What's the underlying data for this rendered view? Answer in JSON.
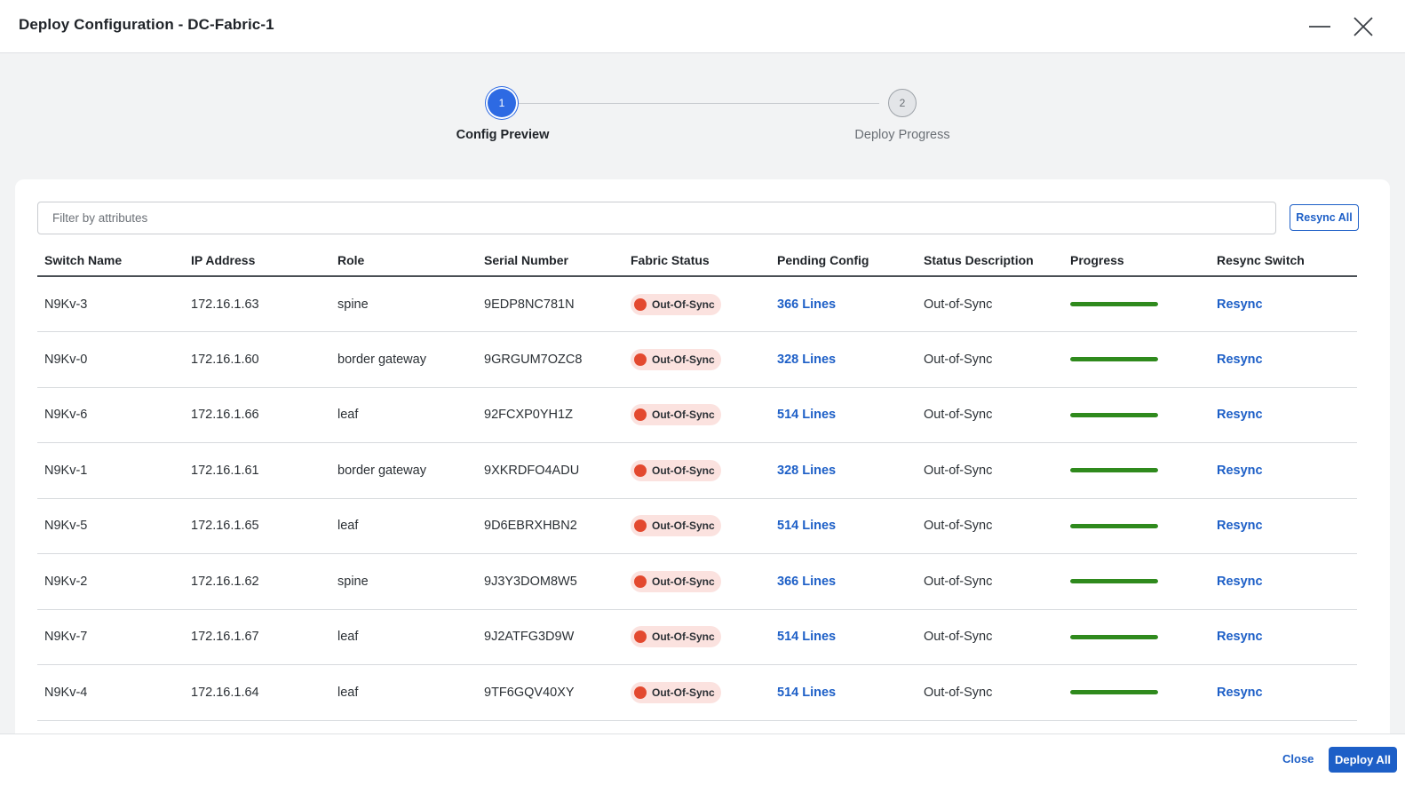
{
  "window": {
    "title": "Deploy Configuration - DC-Fabric-1",
    "minimize_icon": "minimize-icon",
    "close_icon": "close-icon"
  },
  "stepper": {
    "steps": [
      {
        "number": "1",
        "label": "Config Preview",
        "state": "active"
      },
      {
        "number": "2",
        "label": "Deploy Progress",
        "state": "inactive"
      }
    ]
  },
  "filter": {
    "placeholder": "Filter by attributes",
    "value": ""
  },
  "toolbar": {
    "resync_all_label": "Resync All"
  },
  "table": {
    "headers": [
      "Switch Name",
      "IP Address",
      "Role",
      "Serial Number",
      "Fabric Status",
      "Pending Config",
      "Status Description",
      "Progress",
      "Resync Switch"
    ],
    "rows": [
      {
        "switch_name": "N9Kv-3",
        "ip": "172.16.1.63",
        "role": "spine",
        "serial": "9EDP8NC781N",
        "fabric_status": "Out-Of-Sync",
        "pending_config": "366 Lines",
        "status_description": "Out-of-Sync",
        "progress": 1.0,
        "action": "Resync"
      },
      {
        "switch_name": "N9Kv-0",
        "ip": "172.16.1.60",
        "role": "border gateway",
        "serial": "9GRGUM7OZC8",
        "fabric_status": "Out-Of-Sync",
        "pending_config": "328 Lines",
        "status_description": "Out-of-Sync",
        "progress": 1.0,
        "action": "Resync"
      },
      {
        "switch_name": "N9Kv-6",
        "ip": "172.16.1.66",
        "role": "leaf",
        "serial": "92FCXP0YH1Z",
        "fabric_status": "Out-Of-Sync",
        "pending_config": "514 Lines",
        "status_description": "Out-of-Sync",
        "progress": 1.0,
        "action": "Resync"
      },
      {
        "switch_name": "N9Kv-1",
        "ip": "172.16.1.61",
        "role": "border gateway",
        "serial": "9XKRDFO4ADU",
        "fabric_status": "Out-Of-Sync",
        "pending_config": "328 Lines",
        "status_description": "Out-of-Sync",
        "progress": 1.0,
        "action": "Resync"
      },
      {
        "switch_name": "N9Kv-5",
        "ip": "172.16.1.65",
        "role": "leaf",
        "serial": "9D6EBRXHBN2",
        "fabric_status": "Out-Of-Sync",
        "pending_config": "514 Lines",
        "status_description": "Out-of-Sync",
        "progress": 1.0,
        "action": "Resync"
      },
      {
        "switch_name": "N9Kv-2",
        "ip": "172.16.1.62",
        "role": "spine",
        "serial": "9J3Y3DOM8W5",
        "fabric_status": "Out-Of-Sync",
        "pending_config": "366 Lines",
        "status_description": "Out-of-Sync",
        "progress": 1.0,
        "action": "Resync"
      },
      {
        "switch_name": "N9Kv-7",
        "ip": "172.16.1.67",
        "role": "leaf",
        "serial": "9J2ATFG3D9W",
        "fabric_status": "Out-Of-Sync",
        "pending_config": "514 Lines",
        "status_description": "Out-of-Sync",
        "progress": 1.0,
        "action": "Resync"
      },
      {
        "switch_name": "N9Kv-4",
        "ip": "172.16.1.64",
        "role": "leaf",
        "serial": "9TF6GQV40XY",
        "fabric_status": "Out-Of-Sync",
        "pending_config": "514 Lines",
        "status_description": "Out-of-Sync",
        "progress": 1.0,
        "action": "Resync"
      }
    ]
  },
  "footer": {
    "close_label": "Close",
    "deploy_all_label": "Deploy All"
  },
  "colors": {
    "accent": "#1d5fc7",
    "step_active": "#2d6ae3",
    "progress_fill": "#2f8a1d",
    "status_dot": "#e3492f",
    "status_badge_bg": "#fbe2df"
  }
}
